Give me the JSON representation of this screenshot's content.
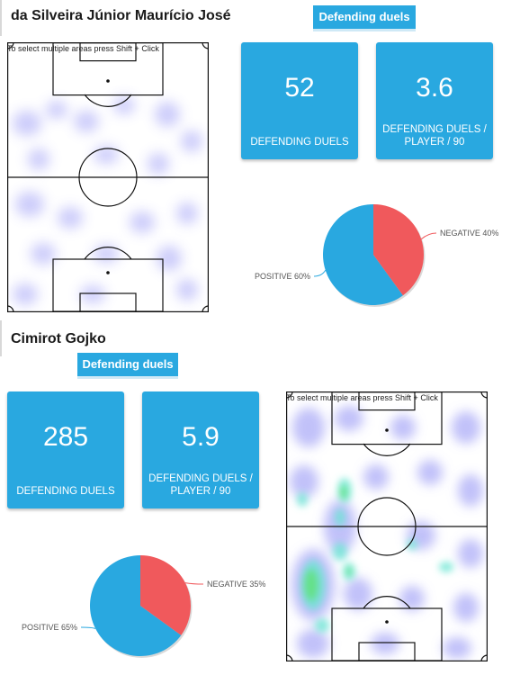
{
  "players": [
    {
      "name": "da Silveira Júnior Maurício José",
      "tab_label": "Defending duels",
      "pitch_hint": "To select multiple areas press Shift + Click",
      "stats": [
        {
          "value": "52",
          "label": "DEFENDING DUELS"
        },
        {
          "value": "3.6",
          "label": "DEFENDING DUELS / PLAYER / 90"
        }
      ],
      "pie": {
        "negative_label": "NEGATIVE 40%",
        "positive_label": "POSITIVE 60%",
        "negative_pct": 40,
        "positive_pct": 60
      }
    },
    {
      "name": "Cimirot Gojko",
      "tab_label": "Defending duels",
      "pitch_hint": "To select multiple areas press Shift + Click",
      "stats": [
        {
          "value": "285",
          "label": "DEFENDING DUELS"
        },
        {
          "value": "5.9",
          "label": "DEFENDING DUELS / PLAYER / 90"
        }
      ],
      "pie": {
        "negative_label": "NEGATIVE 35%",
        "positive_label": "POSITIVE 65%",
        "negative_pct": 35,
        "positive_pct": 65
      }
    }
  ],
  "colors": {
    "card_blue": "#29a8e0",
    "pie_negative": "#f0595c",
    "pie_positive": "#29a8e0",
    "heat_low": "#8f8ff5",
    "heat_high": "#5fe27a"
  }
}
